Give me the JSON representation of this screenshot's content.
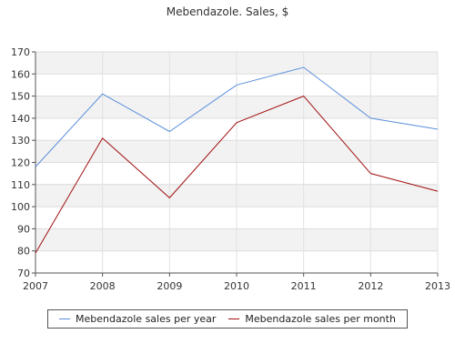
{
  "chart_data": {
    "type": "line",
    "title": "Mebendazole. Sales, $",
    "xlabel": "",
    "ylabel": "",
    "x": [
      "2007",
      "2008",
      "2009",
      "2010",
      "2011",
      "2012",
      "2013"
    ],
    "ylim": [
      70,
      170
    ],
    "yticks": [
      70,
      80,
      90,
      100,
      110,
      120,
      130,
      140,
      150,
      160,
      170
    ],
    "grid": true,
    "legend_position": "bottom",
    "series": [
      {
        "name": "Mebendazole sales per year",
        "color": "#5b8fdc",
        "values": [
          118,
          151,
          134,
          155,
          163,
          140,
          135
        ]
      },
      {
        "name": "Mebendazole sales per month",
        "color": "#a01010",
        "values": [
          79,
          131,
          104,
          138,
          150,
          115,
          107
        ]
      }
    ]
  }
}
